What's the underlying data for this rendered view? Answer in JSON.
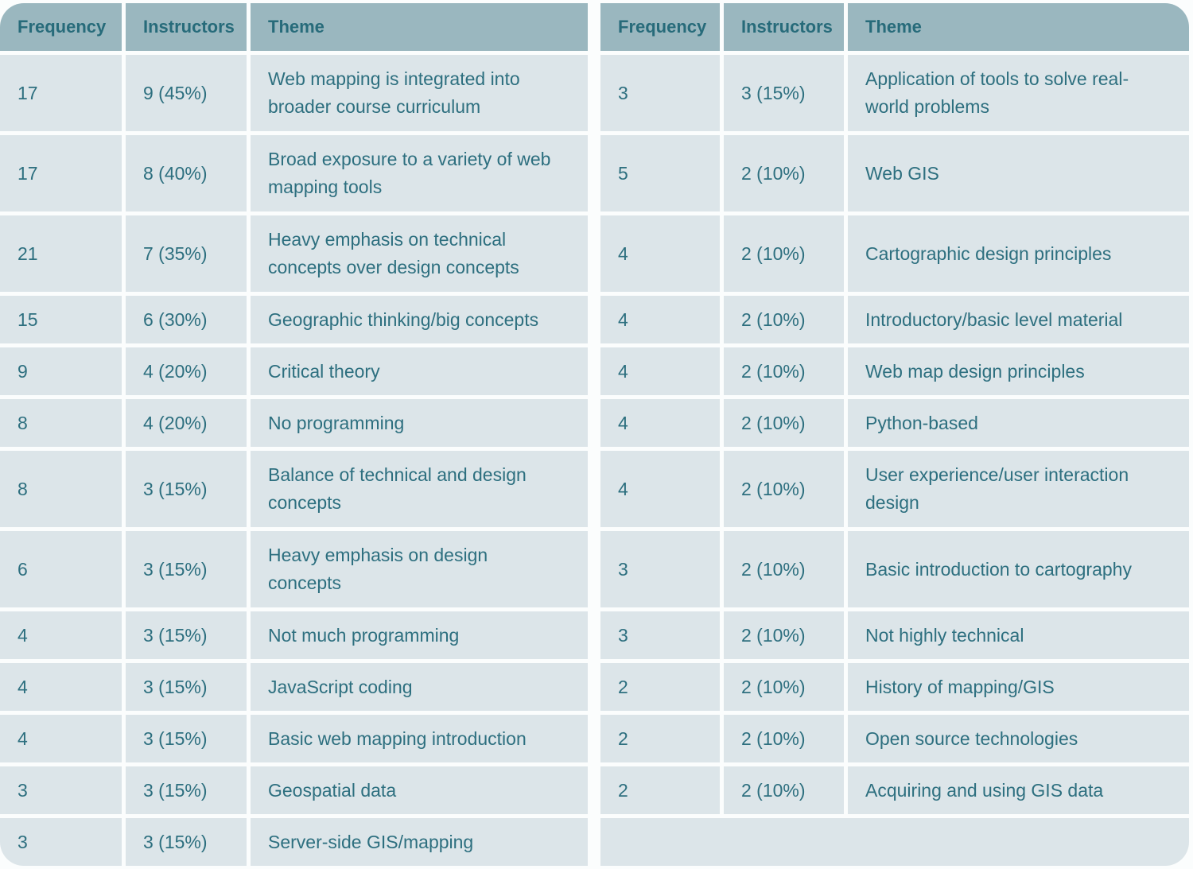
{
  "colors": {
    "header_bg": "#9ab7bf",
    "cell_bg": "#dce5e9",
    "text": "#2d6f7f",
    "divider": "#fbfdfd"
  },
  "left_table": {
    "headers": [
      "Frequency",
      "Instructors",
      "Theme"
    ],
    "rows": [
      {
        "frequency": "17",
        "instructors": "9 (45%)",
        "theme": "Web mapping is integrated into broader course curriculum"
      },
      {
        "frequency": "17",
        "instructors": "8 (40%)",
        "theme": "Broad exposure to a variety of web mapping tools"
      },
      {
        "frequency": "21",
        "instructors": "7 (35%)",
        "theme": "Heavy emphasis on technical concepts over design concepts"
      },
      {
        "frequency": "15",
        "instructors": "6 (30%)",
        "theme": "Geographic thinking/big concepts"
      },
      {
        "frequency": "9",
        "instructors": "4 (20%)",
        "theme": "Critical theory"
      },
      {
        "frequency": "8",
        "instructors": "4 (20%)",
        "theme": "No programming"
      },
      {
        "frequency": "8",
        "instructors": "3 (15%)",
        "theme": "Balance of technical and design concepts"
      },
      {
        "frequency": "6",
        "instructors": "3 (15%)",
        "theme": "Heavy emphasis on design concepts"
      },
      {
        "frequency": "4",
        "instructors": "3 (15%)",
        "theme": "Not much programming"
      },
      {
        "frequency": "4",
        "instructors": "3 (15%)",
        "theme": "JavaScript coding"
      },
      {
        "frequency": "4",
        "instructors": "3 (15%)",
        "theme": "Basic web mapping introduction"
      },
      {
        "frequency": "3",
        "instructors": "3 (15%)",
        "theme": "Geospatial data"
      },
      {
        "frequency": "3",
        "instructors": "3 (15%)",
        "theme": "Server-side GIS/mapping"
      }
    ]
  },
  "right_table": {
    "headers": [
      "Frequency",
      "Instructors",
      "Theme"
    ],
    "rows": [
      {
        "frequency": "3",
        "instructors": "3 (15%)",
        "theme": "Application of tools to solve real-world problems"
      },
      {
        "frequency": "5",
        "instructors": "2 (10%)",
        "theme": "Web GIS"
      },
      {
        "frequency": "4",
        "instructors": "2 (10%)",
        "theme": "Cartographic design principles"
      },
      {
        "frequency": "4",
        "instructors": "2 (10%)",
        "theme": "Introductory/basic level material"
      },
      {
        "frequency": "4",
        "instructors": "2 (10%)",
        "theme": "Web map design principles"
      },
      {
        "frequency": "4",
        "instructors": "2 (10%)",
        "theme": "Python-based"
      },
      {
        "frequency": "4",
        "instructors": "2 (10%)",
        "theme": "User experience/user interaction design"
      },
      {
        "frequency": "3",
        "instructors": "2 (10%)",
        "theme": "Basic introduction to cartography"
      },
      {
        "frequency": "3",
        "instructors": "2 (10%)",
        "theme": "Not highly technical"
      },
      {
        "frequency": "2",
        "instructors": "2 (10%)",
        "theme": "History of mapping/GIS"
      },
      {
        "frequency": "2",
        "instructors": "2 (10%)",
        "theme": "Open source technologies"
      },
      {
        "frequency": "2",
        "instructors": "2 (10%)",
        "theme": "Acquiring and using GIS data"
      }
    ]
  }
}
